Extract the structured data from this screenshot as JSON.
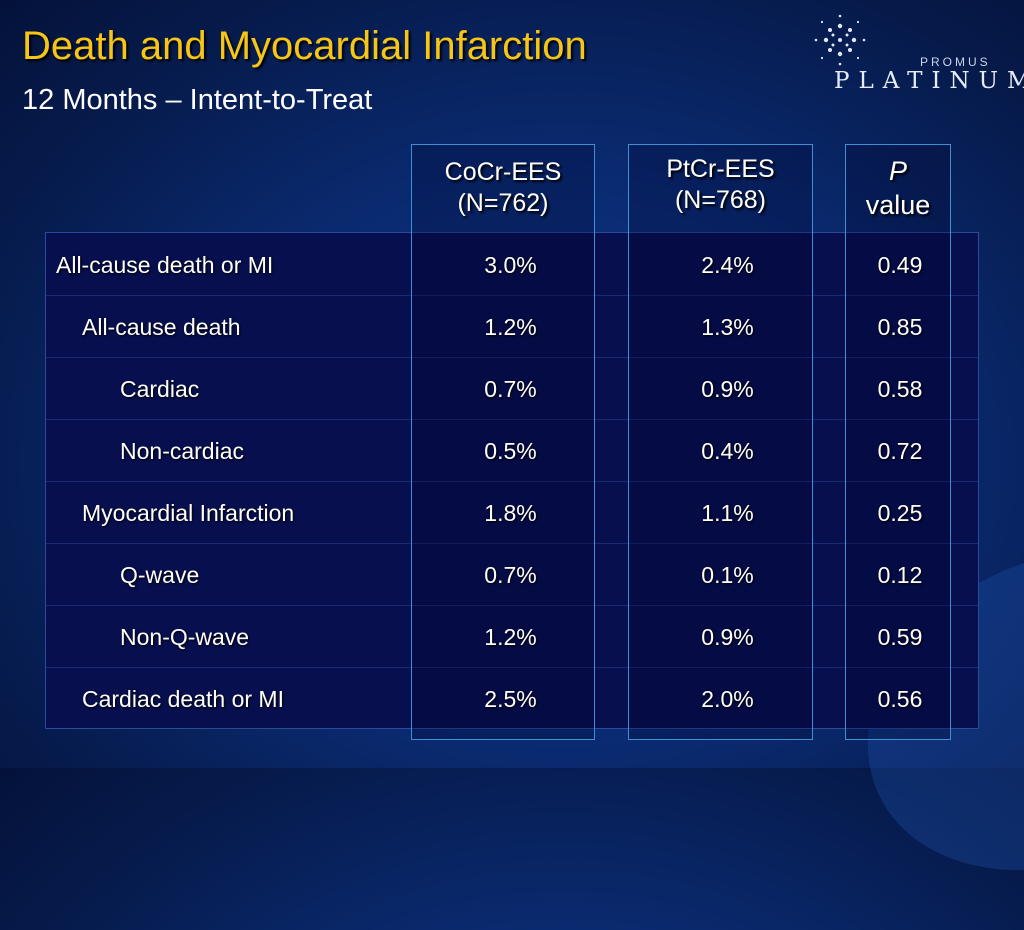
{
  "title": "Death and Myocardial Infarction",
  "subtitle": "12 Months – Intent-to-Treat",
  "logo": {
    "small": "PROMUS",
    "large": "PLATINUM"
  },
  "columns": [
    {
      "line1": "CoCr-EES",
      "line2": "(N=762)"
    },
    {
      "line1": "PtCr-EES",
      "line2": "(N=768)"
    },
    {
      "line1": "P",
      "line2": "value"
    }
  ],
  "rows": [
    {
      "label": "All-cause death or MI",
      "indent": 0,
      "cocr": "3.0%",
      "ptcr": "2.4%",
      "p": "0.49"
    },
    {
      "label": "All-cause death",
      "indent": 1,
      "cocr": "1.2%",
      "ptcr": "1.3%",
      "p": "0.85"
    },
    {
      "label": "Cardiac",
      "indent": 2,
      "cocr": "0.7%",
      "ptcr": "0.9%",
      "p": "0.58"
    },
    {
      "label": "Non-cardiac",
      "indent": 2,
      "cocr": "0.5%",
      "ptcr": "0.4%",
      "p": "0.72"
    },
    {
      "label": "Myocardial Infarction",
      "indent": 1,
      "cocr": "1.8%",
      "ptcr": "1.1%",
      "p": "0.25"
    },
    {
      "label": "Q-wave",
      "indent": 2,
      "cocr": "0.7%",
      "ptcr": "0.1%",
      "p": "0.12"
    },
    {
      "label": "Non-Q-wave",
      "indent": 2,
      "cocr": "1.2%",
      "ptcr": "0.9%",
      "p": "0.59"
    },
    {
      "label": "Cardiac death or MI",
      "indent": 1,
      "cocr": "2.5%",
      "ptcr": "2.0%",
      "p": "0.56"
    }
  ],
  "colors": {
    "title": "#f5c518",
    "text": "#ffffff",
    "box_border": "#3f8fd6",
    "table_bg": "#070f4e"
  }
}
